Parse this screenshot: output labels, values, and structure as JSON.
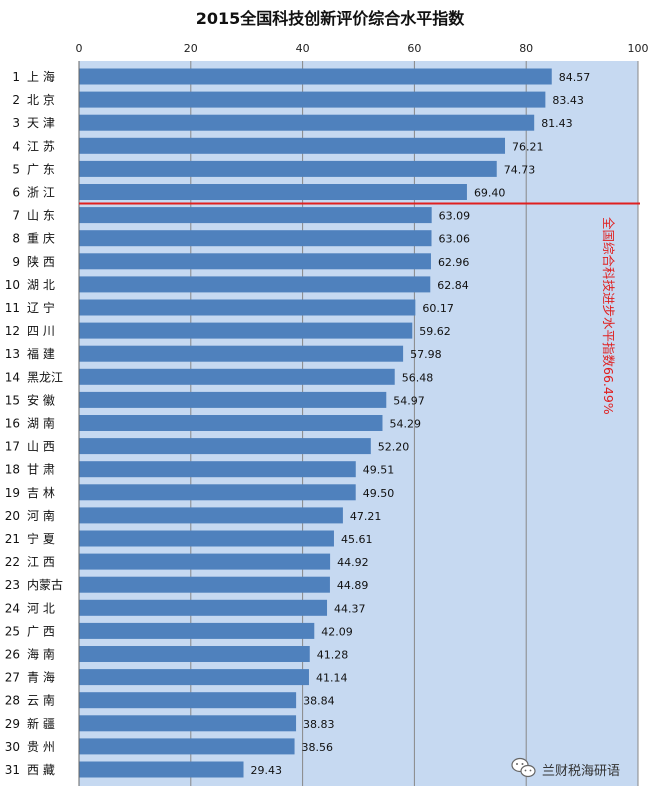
{
  "chart_data": {
    "type": "bar",
    "orientation": "horizontal",
    "title": "2015全国科技创新评价综合水平指数",
    "xlabel": "",
    "ylabel": "",
    "xlim": [
      0,
      100
    ],
    "x_ticks": [
      "0",
      "20",
      "40",
      "60",
      "80",
      "100"
    ],
    "x_tick_values": [
      0,
      20,
      40,
      60,
      80,
      100
    ],
    "grid": true,
    "ranks": [
      "1",
      "2",
      "3",
      "4",
      "5",
      "6",
      "7",
      "8",
      "9",
      "10",
      "11",
      "12",
      "13",
      "14",
      "15",
      "16",
      "17",
      "18",
      "19",
      "20",
      "21",
      "22",
      "23",
      "24",
      "25",
      "26",
      "27",
      "28",
      "29",
      "30",
      "31"
    ],
    "categories": [
      "上 海",
      "北 京",
      "天 津",
      "江 苏",
      "广 东",
      "浙 江",
      "山 东",
      "重 庆",
      "陕 西",
      "湖 北",
      "辽 宁",
      "四 川",
      "福 建",
      "黑龙江",
      "安 徽",
      "湖 南",
      "山 西",
      "甘 肃",
      "吉 林",
      "河 南",
      "宁 夏",
      "江 西",
      "内蒙古",
      "河 北",
      "广 西",
      "海 南",
      "青 海",
      "云 南",
      "新 疆",
      "贵 州",
      "西 藏"
    ],
    "values": [
      84.57,
      83.43,
      81.43,
      76.21,
      74.73,
      69.4,
      63.09,
      63.06,
      62.96,
      62.84,
      60.17,
      59.62,
      57.98,
      56.48,
      54.97,
      54.29,
      52.2,
      49.51,
      49.5,
      47.21,
      45.61,
      44.92,
      44.89,
      44.37,
      42.09,
      41.28,
      41.14,
      38.84,
      38.83,
      38.56,
      29.43
    ],
    "value_labels": [
      "84.57",
      "83.43",
      "81.43",
      "76.21",
      "74.73",
      "69.40",
      "63.09",
      "63.06",
      "62.96",
      "62.84",
      "60.17",
      "59.62",
      "57.98",
      "56.48",
      "54.97",
      "54.29",
      "52.20",
      "49.51",
      "49.50",
      "47.21",
      "45.61",
      "44.92",
      "44.89",
      "44.37",
      "42.09",
      "41.28",
      "41.14",
      "38.84",
      "38.83",
      "38.56",
      "29.43"
    ],
    "reference_line": {
      "value": 66.49,
      "annotation": "全国综合科技进步水平指数66.49%",
      "color": "#e02020"
    },
    "colors": {
      "bar": "#4f81bd",
      "plot_background": "#c6d9f1",
      "grid": "#888888"
    }
  },
  "watermark": {
    "text": "兰财税海研语",
    "icon": "wechat-icon"
  }
}
